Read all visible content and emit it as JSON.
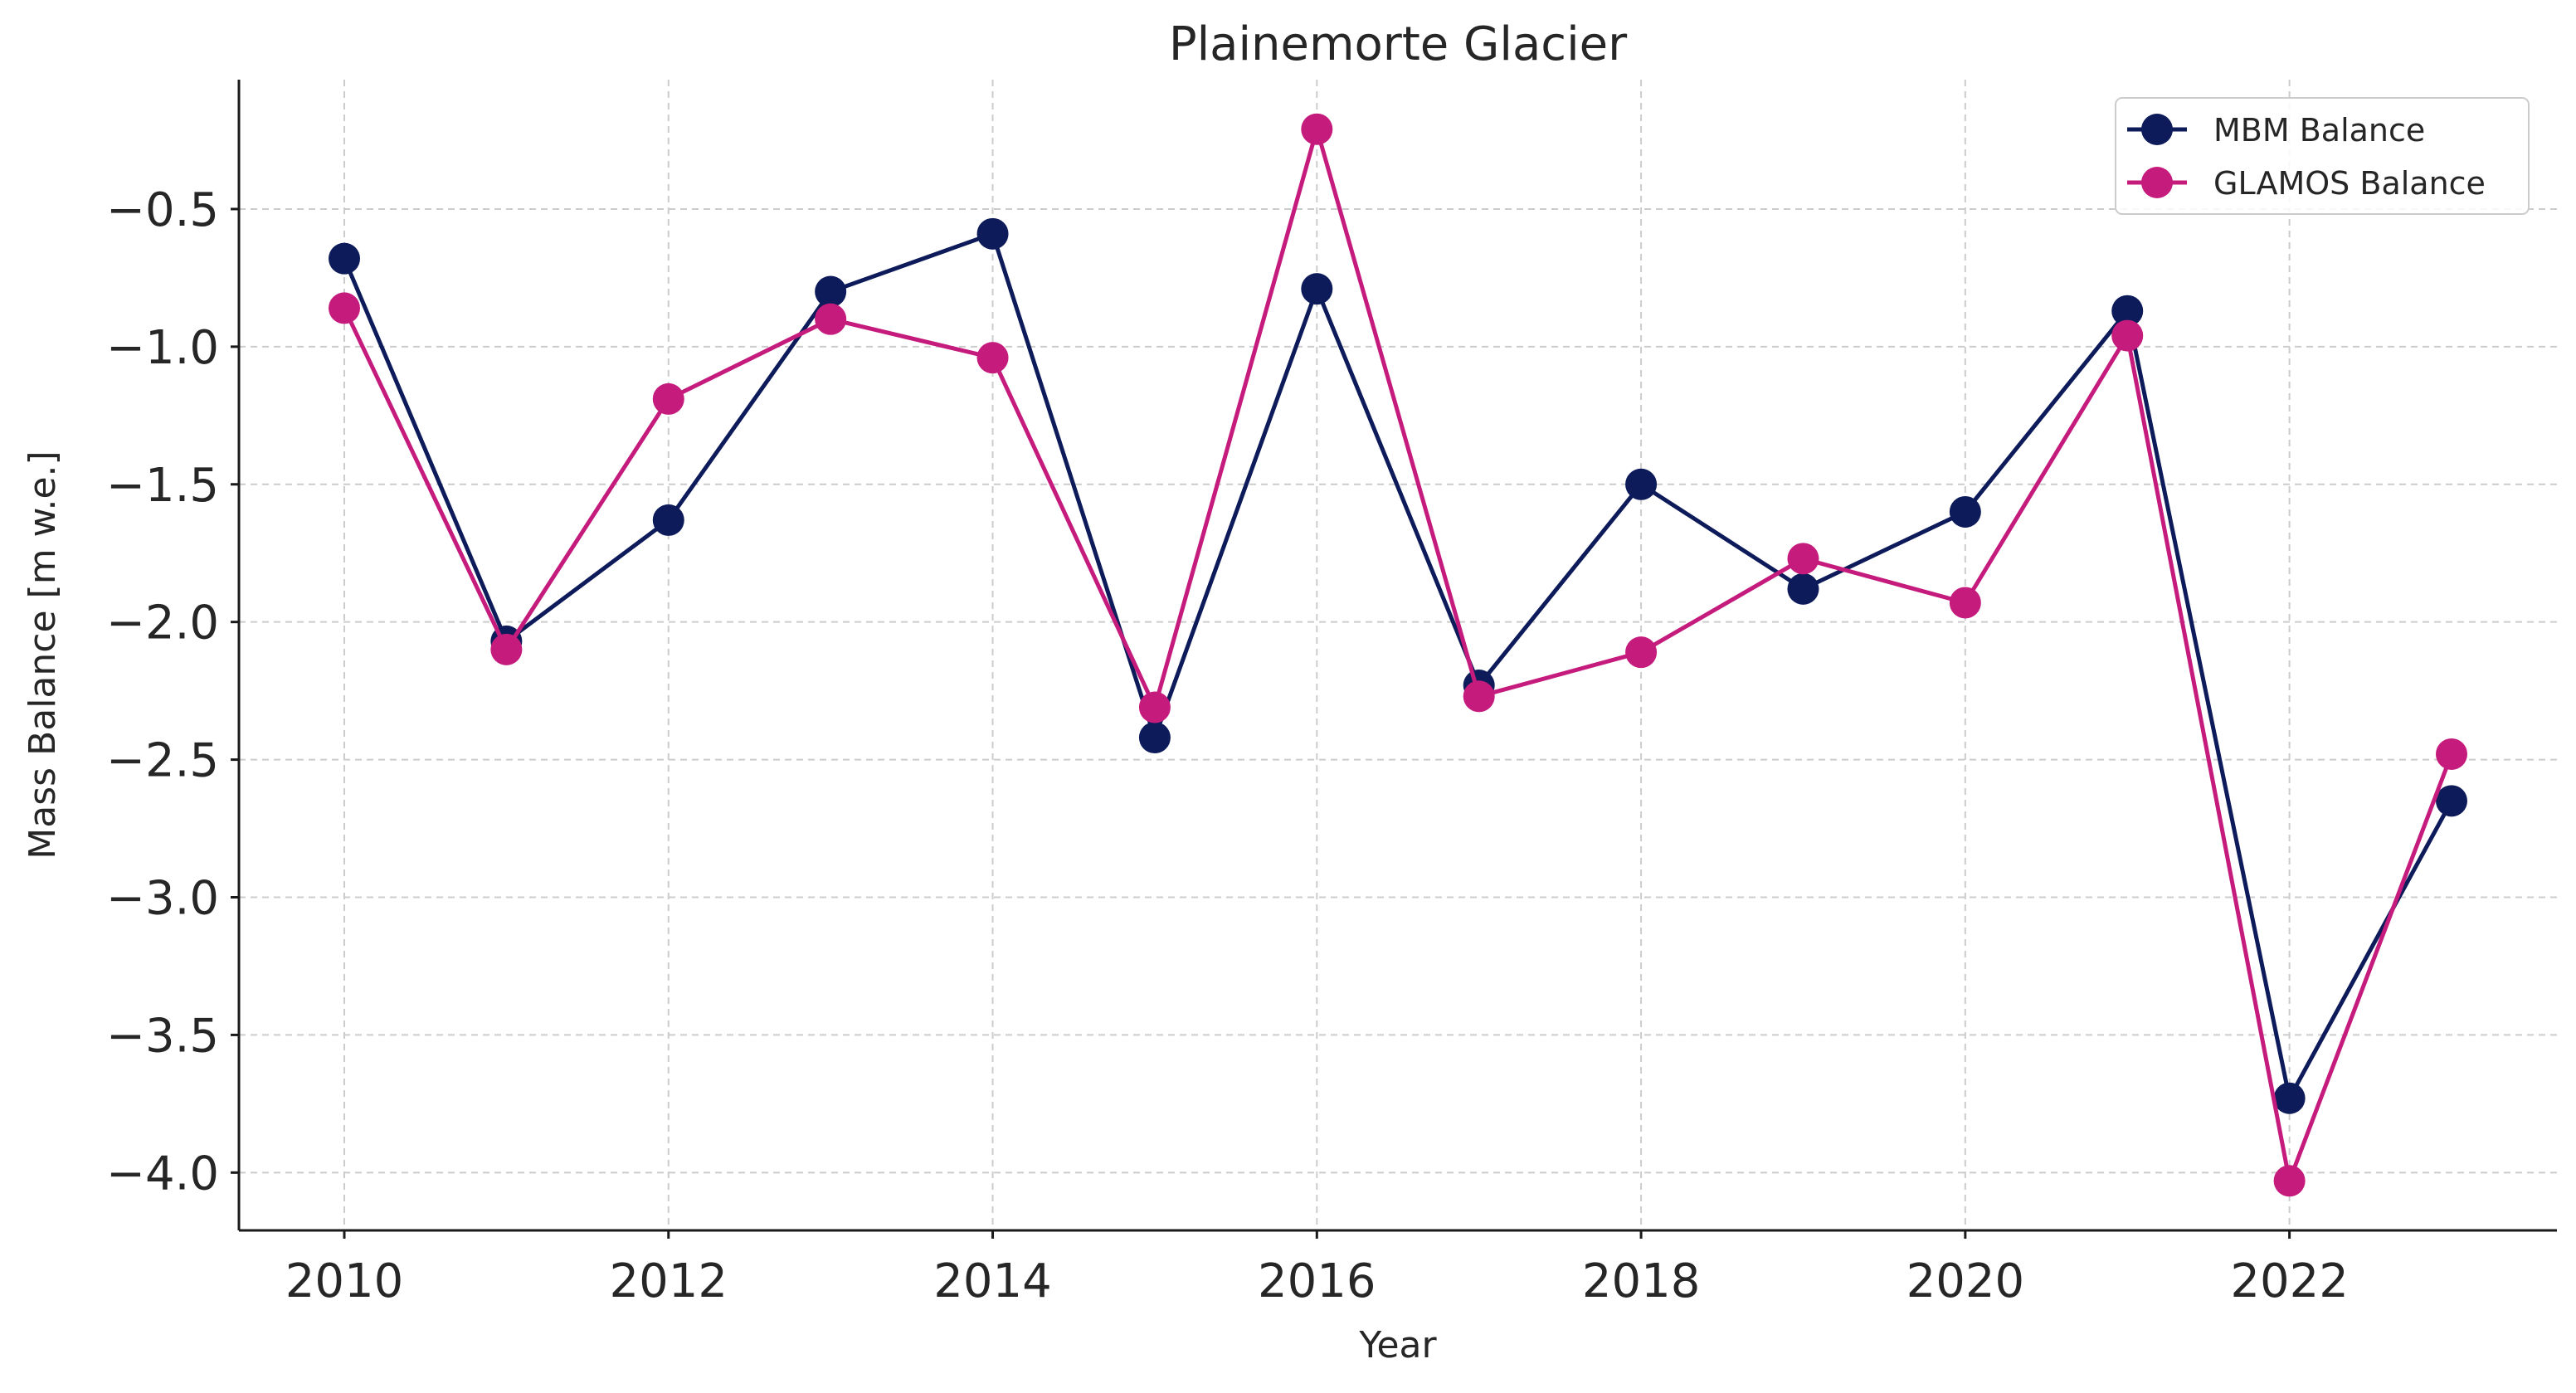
{
  "chart_data": {
    "type": "line",
    "title": "Plainemorte Glacier",
    "xlabel": "Year",
    "ylabel": "Mass Balance [m w.e.]",
    "x": [
      2010,
      2011,
      2012,
      2013,
      2014,
      2015,
      2016,
      2017,
      2018,
      2019,
      2020,
      2021,
      2022,
      2023
    ],
    "xlim": [
      2009.35,
      2023.65
    ],
    "ylim": [
      -4.21,
      -0.03
    ],
    "xticks": [
      2010,
      2012,
      2014,
      2016,
      2018,
      2020,
      2022
    ],
    "xtick_labels": [
      "2010",
      "2012",
      "2014",
      "2016",
      "2018",
      "2020",
      "2022"
    ],
    "yticks": [
      -0.5,
      -1.0,
      -1.5,
      -2.0,
      -2.5,
      -3.0,
      -3.5,
      -4.0
    ],
    "ytick_labels": [
      "−0.5",
      "−1.0",
      "−1.5",
      "−2.0",
      "−2.5",
      "−3.0",
      "−3.5",
      "−4.0"
    ],
    "grid": true,
    "legend_position": "top-right",
    "series": [
      {
        "name": "MBM Balance",
        "color": "#0d1b5a",
        "values": [
          -0.68,
          -2.07,
          -1.63,
          -0.8,
          -0.59,
          -2.42,
          -0.79,
          -2.23,
          -1.5,
          -1.88,
          -1.6,
          -0.87,
          -3.73,
          -2.65
        ]
      },
      {
        "name": "GLAMOS Balance",
        "color": "#c51b7d",
        "values": [
          -0.86,
          -2.1,
          -1.19,
          -0.9,
          -1.04,
          -2.31,
          -0.21,
          -2.27,
          -2.11,
          -1.77,
          -1.93,
          -0.96,
          -4.03,
          -2.48
        ]
      }
    ]
  }
}
